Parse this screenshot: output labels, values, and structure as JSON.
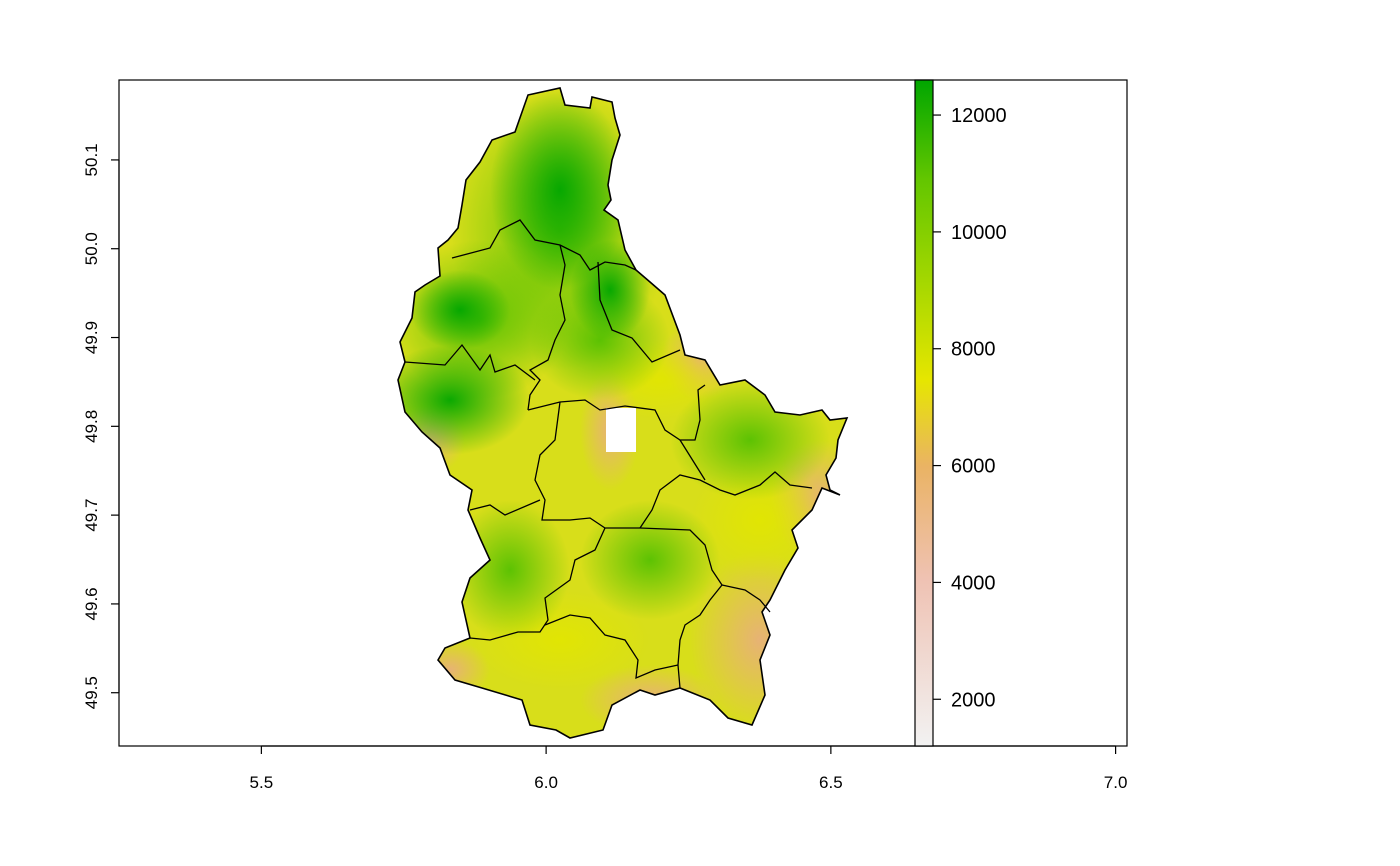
{
  "chart_data": {
    "type": "heatmap",
    "title": "",
    "xlabel": "",
    "ylabel": "",
    "xlim": [
      5.25,
      7.02
    ],
    "ylim": [
      49.44,
      50.19
    ],
    "x_ticks": [
      "5.5",
      "6.0",
      "6.5",
      "7.0"
    ],
    "y_ticks": [
      "49.5",
      "49.6",
      "49.7",
      "49.8",
      "49.9",
      "50.0",
      "50.1"
    ],
    "legend": {
      "placement": "right",
      "range": [
        1200,
        12600
      ],
      "ticks": [
        "2000",
        "4000",
        "6000",
        "8000",
        "10000",
        "12000"
      ]
    },
    "colors": {
      "low": "#f2f2f2",
      "pale": "#efc2b3",
      "tan": "#eab364",
      "yellow": "#e6e600",
      "lightgreen": "#a3d700",
      "green": "#63c600",
      "darkgreen": "#00a600",
      "border": "#000000"
    }
  }
}
